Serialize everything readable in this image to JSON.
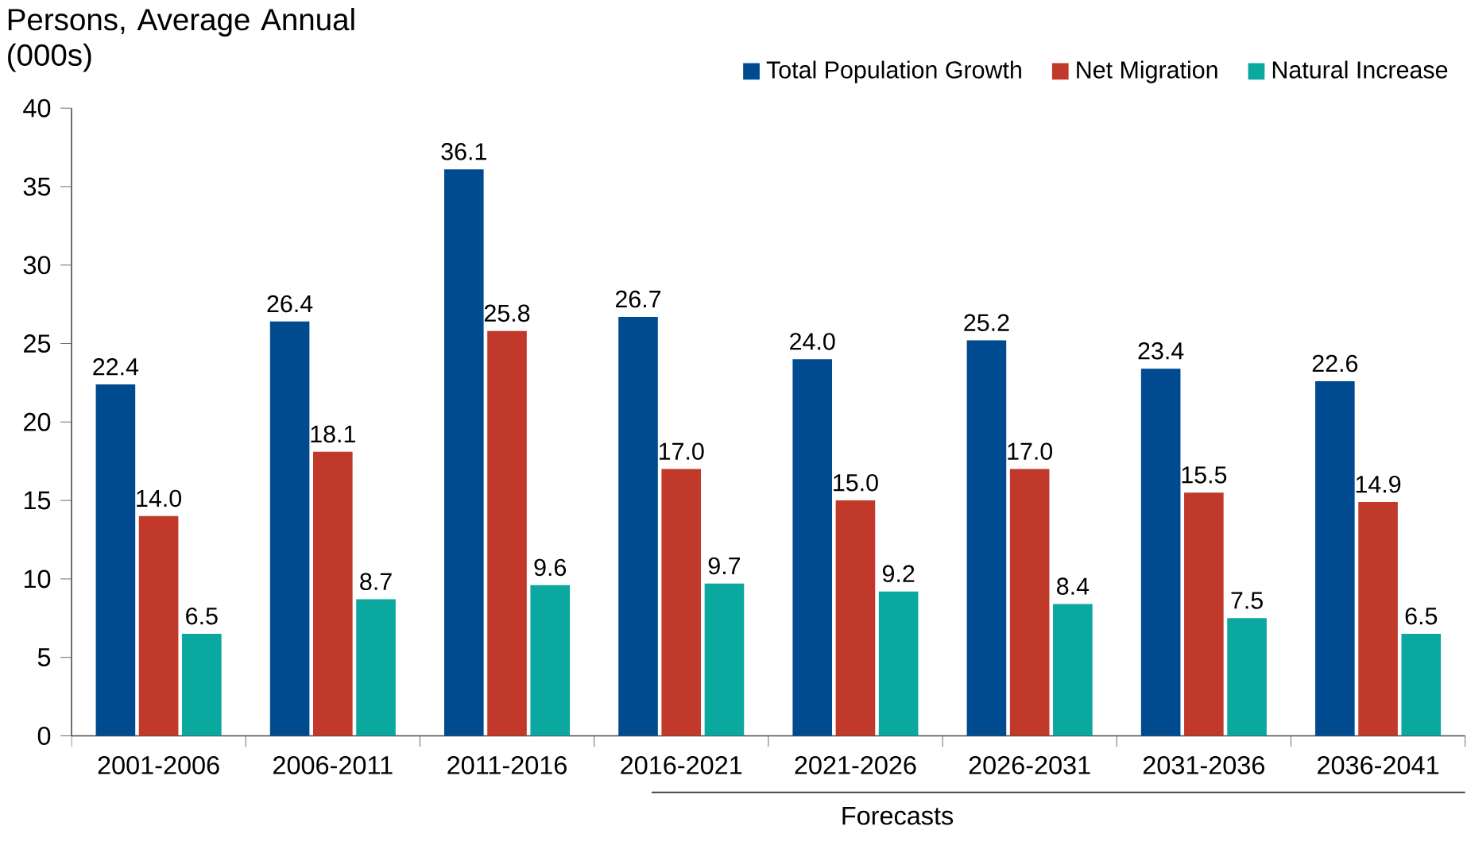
{
  "chart_data": {
    "type": "bar",
    "ylabel": "Persons, Average Annual (000s)",
    "categories": [
      "2001-2006",
      "2006-2011",
      "2011-2016",
      "2016-2021",
      "2021-2026",
      "2026-2031",
      "2031-2036",
      "2036-2041"
    ],
    "series": [
      {
        "name": "Total Population Growth",
        "color": "#004a8f",
        "values": [
          22.4,
          26.4,
          36.1,
          26.7,
          24.0,
          25.2,
          23.4,
          22.6
        ],
        "value_labels": [
          "22.4",
          "26.4",
          "36.1",
          "26.7",
          "24.0",
          "25.2",
          "23.4",
          "22.6"
        ]
      },
      {
        "name": "Net Migration",
        "color": "#c0392b",
        "values": [
          14.0,
          18.1,
          25.8,
          17.0,
          15.0,
          17.0,
          15.5,
          14.9
        ],
        "value_labels": [
          "14.0",
          "18.1",
          "25.8",
          "17.0",
          "15.0",
          "17.0",
          "15.5",
          "14.9"
        ]
      },
      {
        "name": "Natural Increase",
        "color": "#0aa89e",
        "values": [
          6.5,
          8.7,
          9.6,
          9.7,
          9.2,
          8.4,
          7.5,
          6.5
        ],
        "value_labels": [
          "6.5",
          "8.7",
          "9.6",
          "9.7",
          "9.2",
          "8.4",
          "7.5",
          "6.5"
        ]
      }
    ],
    "ylim": [
      0,
      40
    ],
    "yticks": [
      0,
      5,
      10,
      15,
      20,
      25,
      30,
      35,
      40
    ],
    "legend": "top right",
    "grid": false,
    "annotations": [
      "Forecasts"
    ]
  }
}
